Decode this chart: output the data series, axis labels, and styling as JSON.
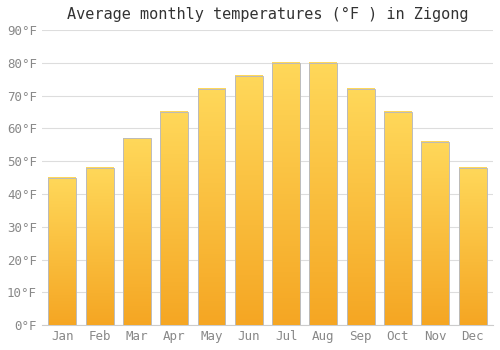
{
  "months": [
    "Jan",
    "Feb",
    "Mar",
    "Apr",
    "May",
    "Jun",
    "Jul",
    "Aug",
    "Sep",
    "Oct",
    "Nov",
    "Dec"
  ],
  "values": [
    45,
    48,
    57,
    65,
    72,
    76,
    80,
    80,
    72,
    65,
    56,
    48
  ],
  "bar_color_bottom": "#F5A623",
  "bar_color_top": "#FFD060",
  "bar_edge_color": "#BBBBBB",
  "title": "Average monthly temperatures (°F ) in Zigong",
  "ylim": [
    0,
    90
  ],
  "yticks": [
    0,
    10,
    20,
    30,
    40,
    50,
    60,
    70,
    80,
    90
  ],
  "ytick_labels": [
    "0°F",
    "10°F",
    "20°F",
    "30°F",
    "40°F",
    "50°F",
    "60°F",
    "70°F",
    "80°F",
    "90°F"
  ],
  "background_color": "#FFFFFF",
  "grid_color": "#DDDDDD",
  "title_fontsize": 11,
  "tick_fontsize": 9,
  "bar_width": 0.75
}
